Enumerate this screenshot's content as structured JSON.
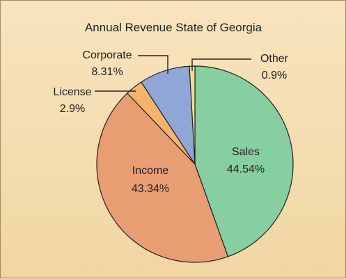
{
  "chart_data": {
    "type": "pie",
    "title": "Annual Revenue State of Georgia",
    "slices": [
      {
        "name": "Sales",
        "value": 44.54,
        "label": "44.54%",
        "color": "#85cfa1"
      },
      {
        "name": "Income",
        "value": 43.34,
        "label": "43.34%",
        "color": "#e99d73"
      },
      {
        "name": "License",
        "value": 2.9,
        "label": "2.9%",
        "color": "#f6b46a"
      },
      {
        "name": "Corporate",
        "value": 8.31,
        "label": "8.31%",
        "color": "#8ea7d6"
      },
      {
        "name": "Other",
        "value": 0.9,
        "label": "0.9%",
        "color": "#f5e08a"
      }
    ],
    "start_angle_deg": 0,
    "direction": "clockwise"
  }
}
